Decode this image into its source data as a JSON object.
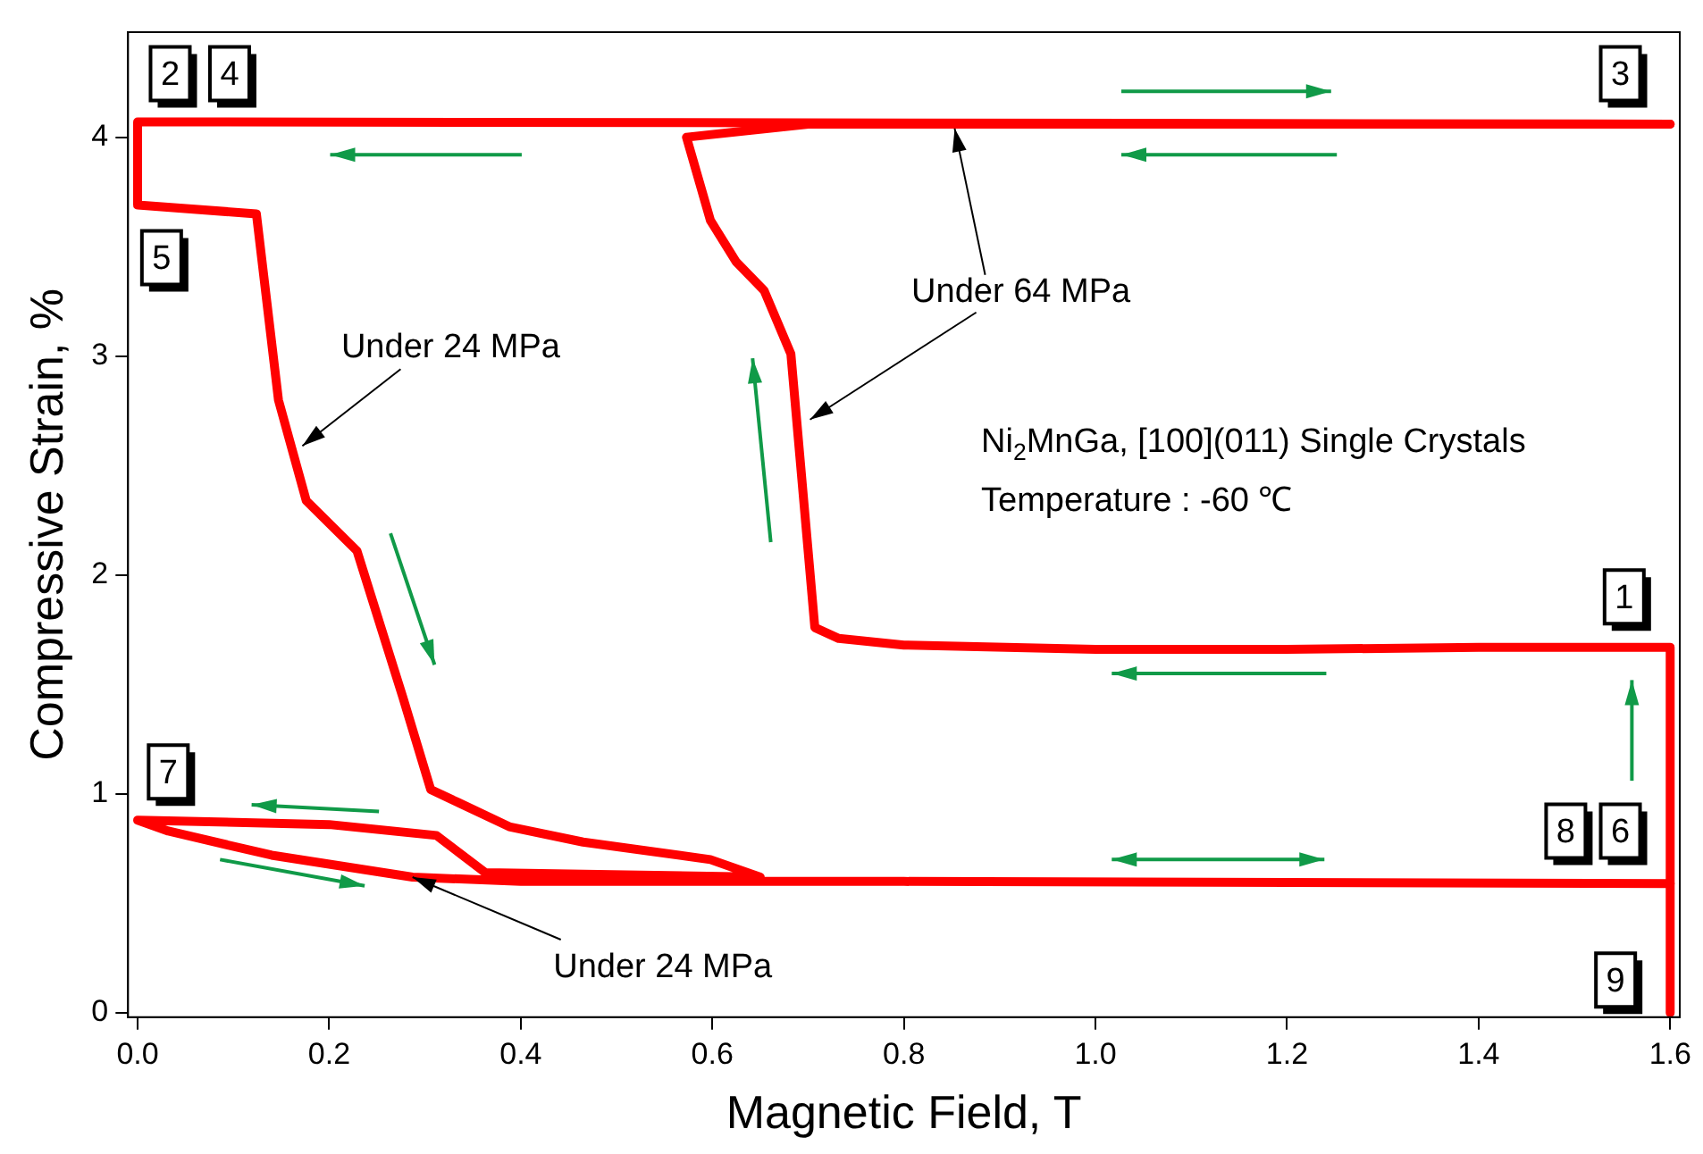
{
  "chart_data": {
    "type": "line",
    "xlabel": "Magnetic Field, T",
    "ylabel": "Compressive Strain, %",
    "xlim": [
      -0.01,
      1.61
    ],
    "ylim": [
      -0.02,
      4.48
    ],
    "xticks": [
      {
        "value": 0,
        "label": "0.0"
      },
      {
        "value": 0.2,
        "label": "0.2"
      },
      {
        "value": 0.4,
        "label": "0.4"
      },
      {
        "value": 0.6,
        "label": "0.6"
      },
      {
        "value": 0.8,
        "label": "0.8"
      },
      {
        "value": 1,
        "label": "1.0"
      },
      {
        "value": 1.2,
        "label": "1.2"
      },
      {
        "value": 1.4,
        "label": "1.4"
      },
      {
        "value": 1.6,
        "label": "1.6"
      }
    ],
    "yticks": [
      0,
      1,
      2,
      3,
      4
    ],
    "grid": false,
    "legend": false,
    "series": [
      {
        "color": "#ff0000",
        "x": [
          1.6,
          1.6,
          1.4,
          1.2,
          1.0,
          0.8,
          0.732,
          0.707,
          0.682,
          0.654,
          0.625,
          0.598,
          0.573,
          0.7,
          1.6
        ],
        "values": [
          0,
          1.67,
          1.67,
          1.66,
          1.66,
          1.68,
          1.71,
          1.76,
          3.01,
          3.3,
          3.43,
          3.62,
          4.0,
          4.06,
          4.06
        ]
      },
      {
        "color": "#ff0000",
        "x": [
          1.6,
          0.0,
          0.0,
          0.124,
          0.147,
          0.176,
          0.229,
          0.277,
          0.306,
          0.335,
          0.388,
          0.465,
          0.598,
          0.65,
          0.363,
          0.312,
          0.2,
          0.0,
          0.032,
          0.14,
          0.287,
          0.4,
          0.8,
          1.6
        ],
        "values": [
          4.06,
          4.07,
          3.69,
          3.65,
          2.8,
          2.34,
          2.11,
          1.44,
          1.02,
          0.96,
          0.85,
          0.78,
          0.7,
          0.62,
          0.64,
          0.81,
          0.86,
          0.88,
          0.83,
          0.72,
          0.62,
          0.6,
          0.6,
          0.59
        ]
      }
    ],
    "annotations": [
      {
        "text": "1",
        "x": 1.552,
        "y": 1.9
      },
      {
        "text": "2",
        "x": 0.034,
        "y": 4.29
      },
      {
        "text": "3",
        "x": 1.548,
        "y": 4.29
      },
      {
        "text": "4",
        "x": 0.096,
        "y": 4.29
      },
      {
        "text": "5",
        "x": 0.025,
        "y": 3.45
      },
      {
        "text": "6",
        "x": 1.548,
        "y": 0.83
      },
      {
        "text": "7",
        "x": 0.032,
        "y": 1.1
      },
      {
        "text": "8",
        "x": 1.491,
        "y": 0.83
      },
      {
        "text": "9",
        "x": 1.543,
        "y": 0.15
      },
      {
        "text": "Under 24 MPa",
        "x": 0.172,
        "y": 2.59
      },
      {
        "text": "Under 64 MPa",
        "x": 0.702,
        "y": 2.71
      },
      {
        "text": "Under 24 MPa",
        "x": 0.287,
        "y": 0.62
      },
      "Ni$_{2}$MnGa, [100](011) Single Crystals",
      "Temperature : -60 ℃"
    ]
  }
}
